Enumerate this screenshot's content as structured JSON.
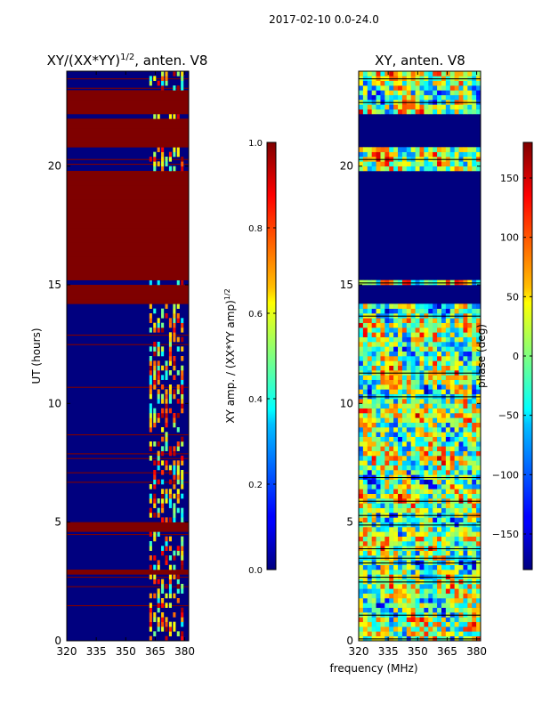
{
  "figure": {
    "suptitle": "2017-02-10 0.0-24.0"
  },
  "colors": {
    "jet_dark_blue": "#00007f",
    "jet_blue": "#0000ff",
    "jet_cyan": "#00ffff",
    "jet_green": "#7fff7f",
    "jet_yellow": "#ffff00",
    "jet_red": "#ff0000",
    "jet_dark_red": "#7f0000"
  },
  "chart_data": [
    {
      "type": "heatmap",
      "title_main": "XY/(XX*YY)",
      "title_sup": "1/2",
      "title_tail": ", anten. V8",
      "xlabel": "",
      "ylabel": "UT (hours)",
      "xlim": [
        320,
        382
      ],
      "ylim": [
        0,
        24
      ],
      "xticks": [
        320,
        335,
        350,
        365,
        380
      ],
      "yticks": [
        0,
        5,
        10,
        15,
        20
      ],
      "colorbar": {
        "label_main": "XY amp. / (XX*YY amp)",
        "label_sup": "1/2",
        "range": [
          0.0,
          1.0
        ],
        "ticks": [
          "0.0",
          "0.2",
          "0.4",
          "0.6",
          "0.8",
          "1.0"
        ],
        "tick_values": [
          0.0,
          0.2,
          0.4,
          0.6,
          0.8,
          1.0
        ]
      },
      "saturated_bands_hours": [
        [
          22.2,
          23.2
        ],
        [
          20.8,
          22.0
        ],
        [
          18.3,
          19.9
        ],
        [
          15.3,
          18.1
        ],
        [
          14.3,
          15.0
        ],
        [
          4.6,
          4.9
        ],
        [
          2.9,
          3.0
        ]
      ],
      "active_channel_range_mhz": [
        362,
        380
      ]
    },
    {
      "type": "heatmap",
      "title": "XY, anten. V8",
      "xlabel": "frequency (MHz)",
      "ylabel": "",
      "xlim": [
        320,
        382
      ],
      "ylim": [
        0,
        24
      ],
      "xticks": [
        320,
        335,
        350,
        365,
        380
      ],
      "yticks": [
        0,
        5,
        10,
        15,
        20
      ],
      "colorbar": {
        "label": "phase (deg)",
        "range": [
          -180,
          180
        ],
        "ticks": [
          "150",
          "100",
          "50",
          "0",
          "−50",
          "−100",
          "−150"
        ],
        "tick_values": [
          150,
          100,
          50,
          0,
          -50,
          -100,
          -150
        ]
      },
      "flagged_bands_hours": [
        [
          20.8,
          22.2
        ],
        [
          18.3,
          19.9
        ],
        [
          15.3,
          18.1
        ],
        [
          14.3,
          15.0
        ]
      ]
    }
  ]
}
